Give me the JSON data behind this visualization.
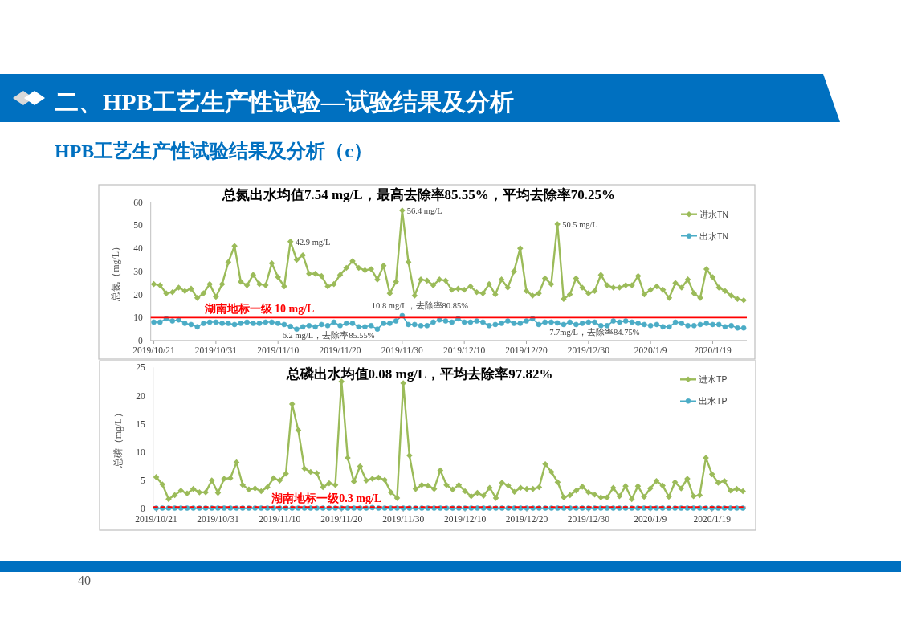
{
  "chart_data": [
    {
      "type": "other",
      "title": "二、HPB工艺生产性试验—试验结果及分析",
      "subtitle": "HPB工艺生产性试验结果及分析（c）",
      "annotations": [
        "40"
      ]
    },
    {
      "type": "line",
      "title": "总氮出水均值7.54 mg/L，最高去除率85.55%，平均去除率70.25%",
      "ylabel": "总氮（mg/L）",
      "x": [
        "2019-10-21",
        "2019-10-22",
        "2019-10-23",
        "2019-10-24",
        "2019-10-25",
        "2019-10-26",
        "2019-10-27",
        "2019-10-28",
        "2019-10-29",
        "2019-10-30",
        "2019-10-31",
        "2019-11-01",
        "2019-11-02",
        "2019-11-03",
        "2019-11-04",
        "2019-11-05",
        "2019-11-06",
        "2019-11-07",
        "2019-11-08",
        "2019-11-09",
        "2019-11-10",
        "2019-11-11",
        "2019-11-12",
        "2019-11-13",
        "2019-11-14",
        "2019-11-15",
        "2019-11-16",
        "2019-11-17",
        "2019-11-18",
        "2019-11-19",
        "2019-11-20",
        "2019-11-21",
        "2019-11-22",
        "2019-11-23",
        "2019-11-24",
        "2019-11-25",
        "2019-11-26",
        "2019-11-27",
        "2019-11-28",
        "2019-11-29",
        "2019-11-30",
        "2019-12-01",
        "2019-12-02",
        "2019-12-03",
        "2019-12-04",
        "2019-12-05",
        "2019-12-06",
        "2019-12-07",
        "2019-12-08",
        "2019-12-09",
        "2019-12-10",
        "2019-12-11",
        "2019-12-12",
        "2019-12-13",
        "2019-12-14",
        "2019-12-15",
        "2019-12-16",
        "2019-12-17",
        "2019-12-18",
        "2019-12-19",
        "2019-12-20",
        "2019-12-21",
        "2019-12-22",
        "2019-12-23",
        "2019-12-24",
        "2019-12-25",
        "2019-12-26",
        "2019-12-27",
        "2019-12-28",
        "2019-12-29",
        "2019-12-30",
        "2019-12-31",
        "2020-01-01",
        "2020-01-02",
        "2020-01-03",
        "2020-01-04",
        "2020-01-05",
        "2020-01-06",
        "2020-01-07",
        "2020-01-08",
        "2020-01-09",
        "2020-01-10",
        "2020-01-11",
        "2020-01-12",
        "2020-01-13",
        "2020-01-14",
        "2020-01-15",
        "2020-01-16",
        "2020-01-17",
        "2020-01-18",
        "2020-01-19",
        "2020-01-20",
        "2020-01-21",
        "2020-01-22",
        "2020-01-23",
        "2020-01-24"
      ],
      "series": [
        {
          "name": "进水TN",
          "color": "#9bbb59",
          "marker": "diamond",
          "values": [
            24.5,
            24,
            20.5,
            21,
            23,
            21.5,
            22.5,
            18.5,
            20.5,
            24.5,
            19,
            24.5,
            34,
            41,
            25.5,
            24,
            28.5,
            24.5,
            24,
            33.5,
            27.5,
            23.5,
            42.9,
            35,
            37,
            29,
            29,
            28,
            23.5,
            24.5,
            28.5,
            31.5,
            34.5,
            31.5,
            30.5,
            31,
            26.5,
            32.5,
            20.5,
            25.5,
            56.4,
            34,
            19.5,
            26.5,
            26,
            24,
            26.5,
            26,
            22,
            22.5,
            22,
            23.5,
            21,
            20.5,
            24.5,
            20,
            26.5,
            23,
            30,
            40,
            21.5,
            19.5,
            20.5,
            27,
            24.5,
            50.5,
            18,
            20,
            27,
            23,
            20.5,
            21.5,
            28.5,
            24,
            23,
            23,
            24,
            24,
            28,
            20,
            22,
            23.5,
            22,
            18.5,
            25,
            23,
            26.5,
            20.5,
            18.5,
            31,
            27.5,
            23,
            21.5,
            19.5,
            18,
            17.5
          ]
        },
        {
          "name": "出水TN",
          "color": "#4bacc6",
          "marker": "circle",
          "values": [
            8,
            8,
            9.5,
            8.5,
            9,
            7.5,
            7,
            6,
            7.5,
            8,
            8,
            7.5,
            7.5,
            7,
            7.5,
            8,
            7.5,
            7.5,
            8,
            8,
            7.5,
            7,
            6.2,
            5,
            6,
            6.5,
            6,
            7,
            6.5,
            8,
            6.5,
            7.5,
            7.5,
            6,
            6,
            6.5,
            5,
            7.5,
            7.5,
            8.5,
            10.8,
            7,
            7,
            6.5,
            6.5,
            8,
            9,
            8.5,
            8,
            9.5,
            8,
            8,
            8.5,
            8,
            6.5,
            7,
            7.5,
            8.5,
            7.5,
            7.5,
            8.5,
            9.5,
            7,
            8,
            8,
            7.7,
            7,
            8,
            7,
            7.5,
            8,
            8,
            6.5,
            6.5,
            8.5,
            8,
            8.5,
            8,
            7.5,
            7,
            6.5,
            7,
            6,
            6,
            8,
            7.5,
            6.5,
            6.5,
            7,
            7.5,
            7,
            7,
            6,
            6.5,
            5.5,
            5.5
          ]
        }
      ],
      "xlim": [
        "2019-10-20T12:00",
        "2020-01-24T12:00"
      ],
      "xticks": [
        {
          "value": "2019-10-21",
          "label": "2019/10/21"
        },
        {
          "value": "2019-10-31",
          "label": "2019/10/31"
        },
        {
          "value": "2019-11-10",
          "label": "2019/11/10"
        },
        {
          "value": "2019-11-20",
          "label": "2019/11/20"
        },
        {
          "value": "2019-11-30",
          "label": "2019/11/30"
        },
        {
          "value": "2019-12-10",
          "label": "2019/12/10"
        },
        {
          "value": "2019-12-20",
          "label": "2019/12/20"
        },
        {
          "value": "2019-12-30",
          "label": "2019/12/30"
        },
        {
          "value": "2020-01-09",
          "label": "2020/1/9"
        },
        {
          "value": "2020-01-19",
          "label": "2020/1/19"
        }
      ],
      "ylim": [
        0,
        60
      ],
      "yticks": [
        0,
        10,
        20,
        30,
        40,
        50,
        60
      ],
      "ref_lines": [
        {
          "axis": "y",
          "value": 10,
          "label": "湖南地标一级 10 mg/L",
          "color": "#ff0000",
          "line_style": "solid"
        }
      ],
      "annotations": [
        {
          "text": "42.9 mg/L",
          "x": "2019-11-12",
          "y": 42.9
        },
        {
          "text": "56.4 mg/L",
          "x": "2019-11-30",
          "y": 56.4
        },
        {
          "text": "50.5 mg/L",
          "x": "2019-12-25",
          "y": 50.5
        },
        {
          "text": "10.8 mg/L，去除率80.85%",
          "x": "2019-11-30",
          "y": 10.8
        },
        {
          "text": "6.2 mg/L，去除率85.55%",
          "x": "2019-11-12",
          "y": 6.2
        },
        {
          "text": "7.7mg/L，去除率84.75%",
          "x": "2019-12-25",
          "y": 7.7
        }
      ],
      "legend": "top right"
    },
    {
      "type": "line",
      "title": "总磷出水均值0.08 mg/L，平均去除率97.82%",
      "ylabel": "总磷（mg/L）",
      "x": [
        "2019-10-21",
        "2019-10-22",
        "2019-10-23",
        "2019-10-24",
        "2019-10-25",
        "2019-10-26",
        "2019-10-27",
        "2019-10-28",
        "2019-10-29",
        "2019-10-30",
        "2019-10-31",
        "2019-11-01",
        "2019-11-02",
        "2019-11-03",
        "2019-11-04",
        "2019-11-05",
        "2019-11-06",
        "2019-11-07",
        "2019-11-08",
        "2019-11-09",
        "2019-11-10",
        "2019-11-11",
        "2019-11-12",
        "2019-11-13",
        "2019-11-14",
        "2019-11-15",
        "2019-11-16",
        "2019-11-17",
        "2019-11-18",
        "2019-11-19",
        "2019-11-20",
        "2019-11-21",
        "2019-11-22",
        "2019-11-23",
        "2019-11-24",
        "2019-11-25",
        "2019-11-26",
        "2019-11-27",
        "2019-11-28",
        "2019-11-29",
        "2019-11-30",
        "2019-12-01",
        "2019-12-02",
        "2019-12-03",
        "2019-12-04",
        "2019-12-05",
        "2019-12-06",
        "2019-12-07",
        "2019-12-08",
        "2019-12-09",
        "2019-12-10",
        "2019-12-11",
        "2019-12-12",
        "2019-12-13",
        "2019-12-14",
        "2019-12-15",
        "2019-12-16",
        "2019-12-17",
        "2019-12-18",
        "2019-12-19",
        "2019-12-20",
        "2019-12-21",
        "2019-12-22",
        "2019-12-23",
        "2019-12-24",
        "2019-12-25",
        "2019-12-26",
        "2019-12-27",
        "2019-12-28",
        "2019-12-29",
        "2019-12-30",
        "2019-12-31",
        "2020-01-01",
        "2020-01-02",
        "2020-01-03",
        "2020-01-04",
        "2020-01-05",
        "2020-01-06",
        "2020-01-07",
        "2020-01-08",
        "2020-01-09",
        "2020-01-10",
        "2020-01-11",
        "2020-01-12",
        "2020-01-13",
        "2020-01-14",
        "2020-01-15",
        "2020-01-16",
        "2020-01-17",
        "2020-01-18",
        "2020-01-19",
        "2020-01-20",
        "2020-01-21",
        "2020-01-22",
        "2020-01-23",
        "2020-01-24"
      ],
      "series": [
        {
          "name": "进水TP",
          "color": "#9bbb59",
          "marker": "diamond",
          "values": [
            5.6,
            4.3,
            1.7,
            2.4,
            3.2,
            2.7,
            3.5,
            2.9,
            2.9,
            5.0,
            2.8,
            5.3,
            5.4,
            8.2,
            4.2,
            3.4,
            3.6,
            3.1,
            3.8,
            5.4,
            5.0,
            6.2,
            18.5,
            13.9,
            7.1,
            6.5,
            6.3,
            3.8,
            4.5,
            4.2,
            22.5,
            9.0,
            4.8,
            7.5,
            5.0,
            5.3,
            5.5,
            5.1,
            2.9,
            1.9,
            22.2,
            9.4,
            3.5,
            4.2,
            4.1,
            3.5,
            6.8,
            4.2,
            3.4,
            4.2,
            3.1,
            2.2,
            2.8,
            2.3,
            3.7,
            1.9,
            4.6,
            4.1,
            3.0,
            3.7,
            3.5,
            3.5,
            3.8,
            7.9,
            6.5,
            4.7,
            2.0,
            2.4,
            3.2,
            3.9,
            2.9,
            2.5,
            2.0,
            2.0,
            3.7,
            2.2,
            4.0,
            1.7,
            4.0,
            2.1,
            3.6,
            4.9,
            4.1,
            2.1,
            4.7,
            3.6,
            5.3,
            2.2,
            2.4,
            9.0,
            6.1,
            4.6,
            4.9,
            3.2,
            3.5,
            3.1
          ]
        },
        {
          "name": "出水TP",
          "color": "#4bacc6",
          "marker": "circle",
          "values": [
            0.1,
            0.1,
            0.1,
            0.1,
            0.1,
            0.1,
            0.1,
            0.1,
            0.1,
            0.1,
            0.1,
            0.1,
            0.1,
            0.1,
            0.1,
            0.1,
            0.1,
            0.1,
            0.1,
            0.1,
            0.1,
            0.1,
            0.1,
            0.1,
            0.1,
            0.1,
            0.1,
            0.1,
            0.1,
            0.1,
            0.1,
            0.1,
            0.1,
            0.1,
            0.1,
            0.2,
            0.1,
            0.1,
            0.1,
            0.1,
            0.1,
            0.1,
            0.1,
            0.1,
            0.1,
            0.1,
            0.1,
            0.1,
            0.1,
            0.1,
            0.1,
            0.1,
            0.1,
            0.1,
            0.1,
            0.1,
            0.1,
            0.1,
            0.1,
            0.1,
            0.1,
            0.1,
            0.1,
            0.1,
            0.1,
            0.1,
            0.1,
            0.1,
            0.1,
            0.1,
            0.1,
            0.1,
            0.1,
            0.1,
            0.1,
            0.1,
            0.1,
            0.1,
            0.1,
            0.1,
            0.1,
            0.1,
            0.1,
            0.1,
            0.1,
            0.1,
            0.1,
            0.1,
            0.1,
            0.1,
            0.1,
            0.1,
            0.1,
            0.1,
            0.1,
            0.1
          ]
        }
      ],
      "xlim": [
        "2019-10-20T12:00",
        "2020-01-24T12:00"
      ],
      "xticks": [
        {
          "value": "2019-10-21",
          "label": "2019/10/21"
        },
        {
          "value": "2019-10-31",
          "label": "2019/10/31"
        },
        {
          "value": "2019-11-10",
          "label": "2019/11/10"
        },
        {
          "value": "2019-11-20",
          "label": "2019/11/20"
        },
        {
          "value": "2019-11-30",
          "label": "2019/11/30"
        },
        {
          "value": "2019-12-10",
          "label": "2019/12/10"
        },
        {
          "value": "2019-12-20",
          "label": "2019/12/20"
        },
        {
          "value": "2019-12-30",
          "label": "2019/12/30"
        },
        {
          "value": "2020-01-09",
          "label": "2020/1/9"
        },
        {
          "value": "2020-01-19",
          "label": "2020/1/19"
        }
      ],
      "ylim": [
        0,
        25
      ],
      "yticks": [
        0,
        5,
        10,
        15,
        20,
        25
      ],
      "ref_lines": [
        {
          "axis": "y",
          "value": 0.3,
          "label": "湖南地标一级0.3 mg/L",
          "color": "#ff0000",
          "line_style": "dashed"
        }
      ],
      "legend": "top right"
    }
  ]
}
